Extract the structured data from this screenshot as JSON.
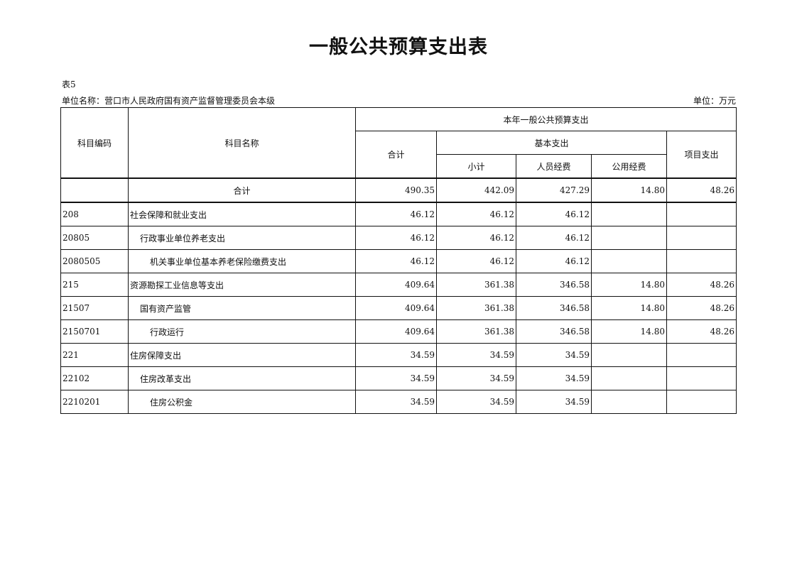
{
  "title": "一般公共预算支出表",
  "table_no": "表5",
  "unit_name": "单位名称：营口市人民政府国有资产监督管理委员会本级",
  "unit": "单位：万元",
  "headers": {
    "code": "科目编码",
    "name": "科目名称",
    "group": "本年一般公共预算支出",
    "total": "合计",
    "basic": "基本支出",
    "subtotal": "小计",
    "personnel": "人员经费",
    "public": "公用经费",
    "project": "项目支出"
  },
  "total_row": {
    "label": "合计",
    "values": [
      "490.35",
      "442.09",
      "427.29",
      "14.80",
      "48.26"
    ]
  },
  "rows": [
    {
      "code": "208",
      "name": "社会保障和就业支出",
      "level": 0,
      "values": [
        "46.12",
        "46.12",
        "46.12",
        "",
        ""
      ]
    },
    {
      "code": "20805",
      "name": "行政事业单位养老支出",
      "level": 1,
      "values": [
        "46.12",
        "46.12",
        "46.12",
        "",
        ""
      ]
    },
    {
      "code": "2080505",
      "name": "机关事业单位基本养老保险缴费支出",
      "level": 2,
      "values": [
        "46.12",
        "46.12",
        "46.12",
        "",
        ""
      ]
    },
    {
      "code": "215",
      "name": "资源勘探工业信息等支出",
      "level": 0,
      "values": [
        "409.64",
        "361.38",
        "346.58",
        "14.80",
        "48.26"
      ]
    },
    {
      "code": "21507",
      "name": "国有资产监管",
      "level": 1,
      "values": [
        "409.64",
        "361.38",
        "346.58",
        "14.80",
        "48.26"
      ]
    },
    {
      "code": "2150701",
      "name": "行政运行",
      "level": 2,
      "values": [
        "409.64",
        "361.38",
        "346.58",
        "14.80",
        "48.26"
      ]
    },
    {
      "code": "221",
      "name": "住房保障支出",
      "level": 0,
      "values": [
        "34.59",
        "34.59",
        "34.59",
        "",
        ""
      ]
    },
    {
      "code": "22102",
      "name": "住房改革支出",
      "level": 1,
      "values": [
        "34.59",
        "34.59",
        "34.59",
        "",
        ""
      ]
    },
    {
      "code": "2210201",
      "name": "住房公积金",
      "level": 2,
      "values": [
        "34.59",
        "34.59",
        "34.59",
        "",
        ""
      ]
    }
  ]
}
